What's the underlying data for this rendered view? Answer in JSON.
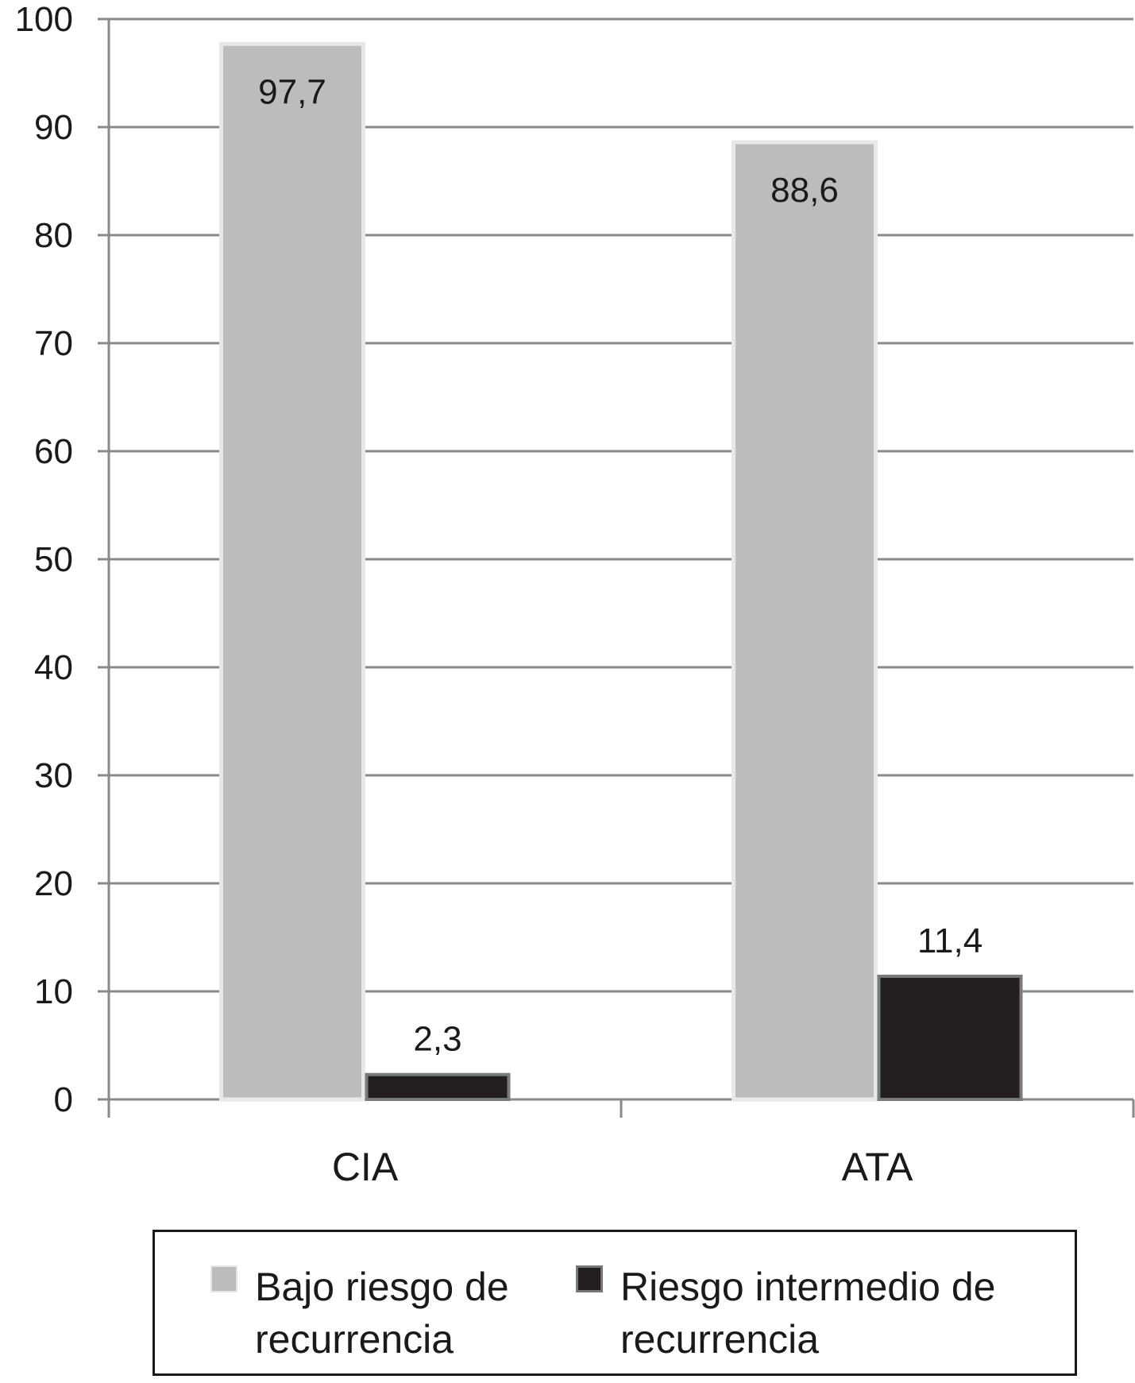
{
  "chart_data": {
    "type": "bar",
    "categories": [
      "CIA",
      "ATA"
    ],
    "series": [
      {
        "name": "Bajo riesgo de recurrencia",
        "values": [
          97.7,
          88.6
        ],
        "labels": [
          "97,7",
          "88,6"
        ],
        "color": "#bcbcbc"
      },
      {
        "name": "Riesgo intermedio de recurrencia",
        "values": [
          2.3,
          11.4
        ],
        "labels": [
          "2,3",
          "11,4"
        ],
        "color": "#231f20"
      }
    ],
    "y_ticks": [
      "0",
      "10",
      "20",
      "30",
      "40",
      "50",
      "60",
      "70",
      "80",
      "90",
      "100"
    ],
    "ylim": [
      0,
      100
    ],
    "grid": true,
    "legend_position": "bottom",
    "title": "",
    "xlabel": "",
    "ylabel": ""
  },
  "legend": {
    "items": [
      {
        "label": "Bajo riesgo de\nrecurrencia",
        "swatch": "#bcbcbc"
      },
      {
        "label": "Riesgo intermedio de\nrecurrencia",
        "swatch": "#231f20"
      }
    ]
  }
}
